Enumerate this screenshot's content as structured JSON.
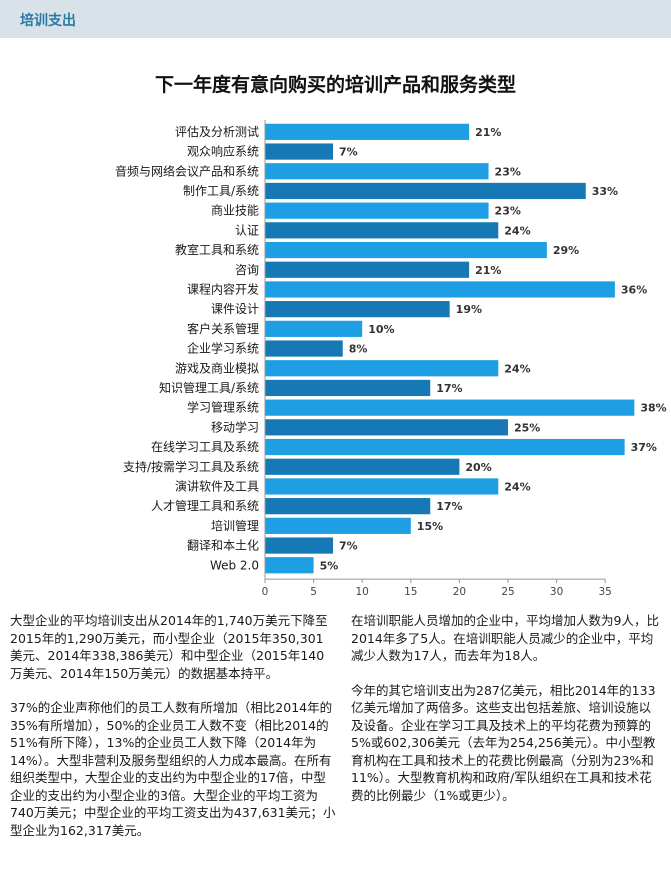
{
  "section_label": "培训支出",
  "chart_data": {
    "type": "bar",
    "orientation": "horizontal",
    "title": "下一年度有意向购买的培训产品和服务类型",
    "categories": [
      "评估及分析测试",
      "观众响应系统",
      "音频与网络会议产品和系统",
      "制作工具/系统",
      "商业技能",
      "认证",
      "教室工具和系统",
      "咨询",
      "课程内容开发",
      "课件设计",
      "客户关系管理",
      "企业学习系统",
      "游戏及商业模拟",
      "知识管理工具/系统",
      "学习管理系统",
      "移动学习",
      "在线学习工具及系统",
      "支持/按需学习工具及系统",
      "演讲软件及工具",
      "人才管理工具和系统",
      "培训管理",
      "翻译和本土化",
      "Web 2.0"
    ],
    "values": [
      21,
      7,
      23,
      33,
      23,
      24,
      29,
      21,
      36,
      19,
      10,
      8,
      24,
      17,
      38,
      25,
      37,
      20,
      24,
      17,
      15,
      7,
      5
    ],
    "data_labels": [
      "21%",
      "7%",
      "23%",
      "33%",
      "23%",
      "24%",
      "29%",
      "21%",
      "36%",
      "19%",
      "10%",
      "8%",
      "24%",
      "17%",
      "38%",
      "25%",
      "37%",
      "20%",
      "24%",
      "17%",
      "15%",
      "7%",
      "5%"
    ],
    "xticks": [
      "0",
      "5",
      "10",
      "15",
      "20",
      "25",
      "30",
      "35"
    ],
    "xlim": [
      0,
      35
    ],
    "grid": false,
    "colors": {
      "light": "#1e9fe3",
      "dark": "#1678b4"
    }
  },
  "paragraphs_left": [
    "大型企业的平均培训支出从2014年的1,740万美元下降至2015年的1,290万美元，而小型企业（2015年350,301美元、2014年338,386美元）和中型企业（2015年140万美元、2014年150万美元）的数据基本持平。",
    "37%的企业声称他们的员工人数有所增加（相比2014年的35%有所增加），50%的企业员工人数不变（相比2014的51%有所下降），13%的企业员工人数下降（2014年为14%）。大型非营利及服务型组织的人力成本最高。在所有组织类型中，大型企业的支出约为中型企业的17倍，中型企业的支出约为小型企业的3倍。大型企业的平均工资为740万美元；中型企业的平均工资支出为437,631美元；小型企业为162,317美元。"
  ],
  "paragraphs_right": [
    "在培训职能人员增加的企业中，平均增加人数为9人，比2014年多了5人。在培训职能人员减少的企业中，平均减少人数为17人，而去年为18人。",
    "今年的其它培训支出为287亿美元，相比2014年的133亿美元增加了两倍多。这些支出包括差旅、培训设施以及设备。企业在学习工具及技术上的平均花费为预算的5%或602,306美元（去年为254,256美元）。中小型教育机构在工具和技术上的花费比例最高（分别为23%和11%）。大型教育机构和政府/军队组织在工具和技术花费的比例最少（1%或更少）。"
  ]
}
